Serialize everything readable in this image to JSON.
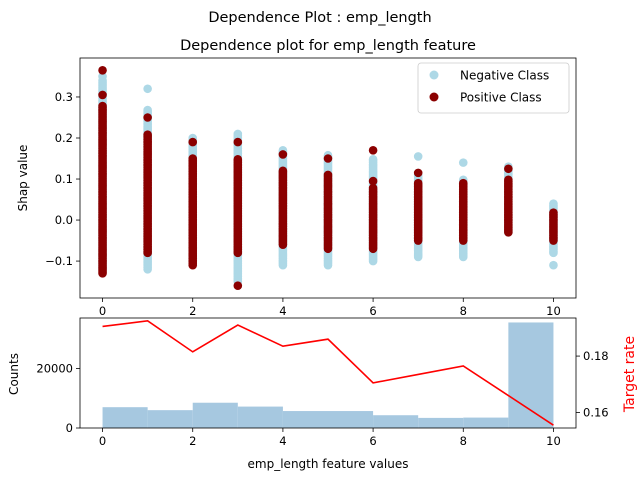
{
  "figure": {
    "suptitle": "Dependence Plot : emp_length"
  },
  "chart_data": [
    {
      "type": "scatter",
      "title": "Dependence plot for emp_length feature",
      "xlabel": "",
      "ylabel": "Shap value",
      "xlim": [
        -0.5,
        10.5
      ],
      "ylim": [
        -0.19,
        0.395
      ],
      "xticks": [
        "0",
        "2",
        "4",
        "6",
        "8",
        "10"
      ],
      "yticks": [
        "−0.1",
        "0.0",
        "0.1",
        "0.2",
        "0.3"
      ],
      "ytick_values": [
        -0.1,
        0.0,
        0.1,
        0.2,
        0.3
      ],
      "legend_position": "upper-right",
      "series": [
        {
          "name": "Negative Class",
          "color": "#add8e6",
          "by_x": [
            {
              "x": 0,
              "min": -0.12,
              "max": 0.34,
              "outliers": [
                0.35
              ]
            },
            {
              "x": 1,
              "min": -0.12,
              "max": 0.27,
              "outliers": [
                0.32
              ]
            },
            {
              "x": 2,
              "min": -0.1,
              "max": 0.2,
              "outliers": []
            },
            {
              "x": 3,
              "min": -0.15,
              "max": 0.21,
              "outliers": []
            },
            {
              "x": 4,
              "min": -0.11,
              "max": 0.17,
              "outliers": []
            },
            {
              "x": 5,
              "min": -0.11,
              "max": 0.16,
              "outliers": []
            },
            {
              "x": 6,
              "min": -0.1,
              "max": 0.15,
              "outliers": []
            },
            {
              "x": 7,
              "min": -0.09,
              "max": 0.11,
              "outliers": [
                0.155
              ]
            },
            {
              "x": 8,
              "min": -0.09,
              "max": 0.1,
              "outliers": [
                0.14
              ]
            },
            {
              "x": 9,
              "min": -0.03,
              "max": 0.13,
              "outliers": []
            },
            {
              "x": 10,
              "min": -0.08,
              "max": 0.04,
              "outliers": [
                -0.11
              ]
            }
          ]
        },
        {
          "name": "Positive Class",
          "color": "#8b0000",
          "by_x": [
            {
              "x": 0,
              "min": -0.13,
              "max": 0.28,
              "outliers": [
                0.365,
                0.305
              ]
            },
            {
              "x": 1,
              "min": -0.08,
              "max": 0.21,
              "outliers": [
                0.25
              ]
            },
            {
              "x": 2,
              "min": -0.11,
              "max": 0.15,
              "outliers": [
                0.19
              ]
            },
            {
              "x": 3,
              "min": -0.08,
              "max": 0.15,
              "outliers": [
                0.19,
                -0.16
              ]
            },
            {
              "x": 4,
              "min": -0.06,
              "max": 0.12,
              "outliers": [
                0.16
              ]
            },
            {
              "x": 5,
              "min": -0.07,
              "max": 0.11,
              "outliers": [
                0.15
              ]
            },
            {
              "x": 6,
              "min": -0.07,
              "max": 0.08,
              "outliers": [
                0.17,
                0.095
              ]
            },
            {
              "x": 7,
              "min": -0.05,
              "max": 0.09,
              "outliers": [
                0.115
              ]
            },
            {
              "x": 8,
              "min": -0.05,
              "max": 0.09,
              "outliers": []
            },
            {
              "x": 9,
              "min": -0.03,
              "max": 0.1,
              "outliers": [
                0.125
              ]
            },
            {
              "x": 10,
              "min": -0.05,
              "max": 0.02,
              "outliers": []
            }
          ]
        }
      ]
    },
    {
      "type": "bar",
      "title": "",
      "xlabel": "emp_length feature values",
      "ylabel": "Counts",
      "xlim": [
        -0.5,
        10.5
      ],
      "ylim": [
        0,
        37000
      ],
      "xticks": [
        "0",
        "2",
        "4",
        "6",
        "8",
        "10"
      ],
      "yticks": [
        "0",
        "20000"
      ],
      "ytick_values": [
        0,
        20000
      ],
      "bar_color": "#a6c8e0",
      "bins": [
        {
          "x0": 0.0,
          "x1": 1.0,
          "value": 7000
        },
        {
          "x0": 1.0,
          "x1": 2.0,
          "value": 6000
        },
        {
          "x0": 2.0,
          "x1": 3.0,
          "value": 8500
        },
        {
          "x0": 3.0,
          "x1": 4.0,
          "value": 7200
        },
        {
          "x0": 4.0,
          "x1": 5.0,
          "value": 5700
        },
        {
          "x0": 5.0,
          "x1": 6.0,
          "value": 5700
        },
        {
          "x0": 6.0,
          "x1": 7.0,
          "value": 4300
        },
        {
          "x0": 7.0,
          "x1": 8.0,
          "value": 3400
        },
        {
          "x0": 8.0,
          "x1": 9.0,
          "value": 3500
        },
        {
          "x0": 9.0,
          "x1": 10.0,
          "value": 35500
        }
      ]
    },
    {
      "type": "line",
      "title": "",
      "ylabel": "Target rate",
      "color": "#ff0000",
      "ylim": [
        0.1545,
        0.1935
      ],
      "yticks": [
        "0.16",
        "0.18"
      ],
      "ytick_values": [
        0.16,
        0.18
      ],
      "x": [
        0,
        1,
        2,
        3,
        4,
        5,
        6,
        7,
        8,
        9,
        10
      ],
      "values": [
        0.1905,
        0.1925,
        0.1815,
        0.191,
        0.1835,
        0.186,
        0.1705,
        0.1735,
        0.1765,
        0.166,
        0.1555
      ]
    }
  ]
}
